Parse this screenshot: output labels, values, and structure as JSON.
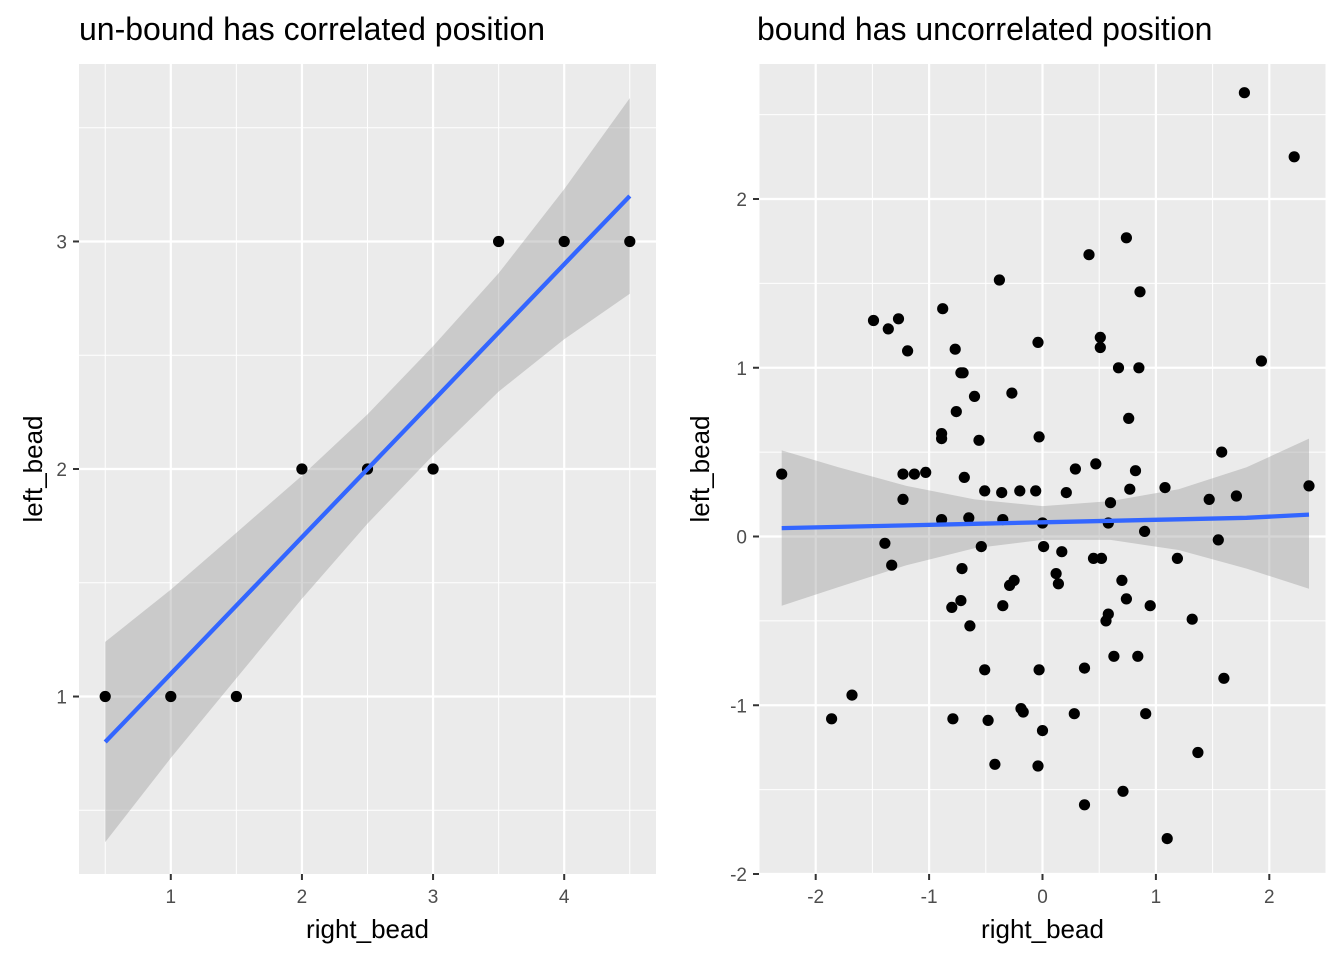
{
  "chart_data": [
    {
      "type": "scatter",
      "title": "un-bound has correlated position",
      "xlabel": "right_bead",
      "ylabel": "left_bead",
      "xlim": [
        0.3,
        4.7
      ],
      "ylim": [
        0.22,
        3.78
      ],
      "xticks": [
        1,
        2,
        3,
        4
      ],
      "xtick_labels": [
        "1",
        "2",
        "3",
        "4"
      ],
      "yticks": [
        1,
        2,
        3
      ],
      "ytick_labels": [
        "1",
        "2",
        "3"
      ],
      "grid": true,
      "panel_background": "#ebebeb",
      "x": [
        0.5,
        1,
        1.5,
        2,
        2.5,
        3,
        3.5,
        4,
        4.5
      ],
      "y": [
        1,
        1,
        1,
        2,
        2,
        2,
        3,
        3,
        3
      ],
      "fit": {
        "method": "linear regression with confidence band",
        "color": "#3366ff",
        "band_color": "#999999",
        "x": [
          0.5,
          1,
          1.5,
          2,
          2.5,
          3,
          3.5,
          4,
          4.5
        ],
        "y": [
          0.8,
          1.1,
          1.4,
          1.7,
          2.0,
          2.3,
          2.6,
          2.9,
          3.2
        ],
        "lower": [
          0.36,
          0.73,
          1.08,
          1.43,
          1.76,
          2.06,
          2.34,
          2.57,
          2.77
        ],
        "upper": [
          1.24,
          1.47,
          1.72,
          1.97,
          2.24,
          2.54,
          2.86,
          3.23,
          3.63
        ]
      }
    },
    {
      "type": "scatter",
      "title": "bound has uncorrelated position",
      "xlabel": "right_bead",
      "ylabel": "left_bead",
      "xlim": [
        -2.5,
        2.5
      ],
      "ylim": [
        -2.0,
        2.8
      ],
      "xticks": [
        -2,
        -1,
        0,
        1,
        2
      ],
      "xtick_labels": [
        "-2",
        "-1",
        "0",
        "1",
        "2"
      ],
      "yticks": [
        -2,
        -1,
        0,
        1,
        2
      ],
      "ytick_labels": [
        "-2",
        "-1",
        "0",
        "1",
        "2"
      ],
      "grid": true,
      "panel_background": "#ebebeb",
      "x": [
        1.78,
        2.22,
        0.74,
        0.41,
        -0.38,
        0.86,
        -0.88,
        -1.27,
        -1.36,
        -1.49,
        -0.77,
        -1.19,
        -0.04,
        0.51,
        0.51,
        1.93,
        -0.72,
        -0.7,
        0.67,
        0.85,
        -0.6,
        -0.27,
        -0.76,
        0.76,
        -0.89,
        -0.03,
        -0.89,
        -0.56,
        1.58,
        0.47,
        -1.13,
        -1.03,
        0.29,
        -0.69,
        -1.23,
        0.82,
        -0.51,
        0.77,
        1.08,
        -0.2,
        -0.06,
        -0.36,
        0.21,
        1.71,
        1.47,
        -1.23,
        0.6,
        -0.35,
        -0.89,
        -0.65,
        0.0,
        0.58,
        0.9,
        -1.39,
        -0.54,
        1.55,
        0.01,
        0.17,
        0.45,
        0.52,
        1.19,
        -1.33,
        -0.71,
        0.12,
        -0.25,
        0.7,
        -0.29,
        0.14,
        -0.8,
        0.74,
        -0.72,
        0.95,
        -0.35,
        0.58,
        1.32,
        0.56,
        -0.64,
        0.63,
        0.84,
        -0.51,
        -0.03,
        0.37,
        1.6,
        -1.68,
        -0.19,
        -0.17,
        0.28,
        0.91,
        -1.86,
        -0.79,
        -0.48,
        0.0,
        1.37,
        -0.42,
        -0.04,
        0.71,
        0.37,
        1.1,
        -2.3,
        2.35
      ],
      "y": [
        2.63,
        2.25,
        1.77,
        1.67,
        1.52,
        1.45,
        1.35,
        1.29,
        1.23,
        1.28,
        1.11,
        1.1,
        1.15,
        1.18,
        1.12,
        1.04,
        0.97,
        0.97,
        1.0,
        1.0,
        0.83,
        0.85,
        0.74,
        0.7,
        0.61,
        0.59,
        0.58,
        0.57,
        0.5,
        0.43,
        0.37,
        0.38,
        0.4,
        0.35,
        0.37,
        0.39,
        0.27,
        0.28,
        0.29,
        0.27,
        0.27,
        0.26,
        0.26,
        0.24,
        0.22,
        0.22,
        0.2,
        0.1,
        0.1,
        0.11,
        0.08,
        0.08,
        0.03,
        -0.04,
        -0.06,
        -0.02,
        -0.06,
        -0.09,
        -0.13,
        -0.13,
        -0.13,
        -0.17,
        -0.19,
        -0.22,
        -0.26,
        -0.26,
        -0.29,
        -0.28,
        -0.42,
        -0.37,
        -0.38,
        -0.41,
        -0.41,
        -0.46,
        -0.49,
        -0.5,
        -0.53,
        -0.71,
        -0.71,
        -0.79,
        -0.79,
        -0.78,
        -0.84,
        -0.94,
        -1.02,
        -1.04,
        -1.05,
        -1.05,
        -1.08,
        -1.08,
        -1.09,
        -1.15,
        -1.28,
        -1.35,
        -1.36,
        -1.51,
        -1.59,
        -1.79,
        0.37,
        0.3
      ],
      "fit": {
        "method": "linear regression with confidence band",
        "color": "#3366ff",
        "band_color": "#999999",
        "x": [
          -2.3,
          -1.8,
          -1.2,
          -0.6,
          0,
          0.6,
          1.2,
          1.8,
          2.35
        ],
        "y": [
          0.05,
          0.057,
          0.066,
          0.075,
          0.084,
          0.093,
          0.102,
          0.111,
          0.13
        ],
        "lower": [
          -0.41,
          -0.3,
          -0.17,
          -0.07,
          -0.02,
          -0.02,
          -0.08,
          -0.19,
          -0.31
        ],
        "upper": [
          0.51,
          0.41,
          0.3,
          0.22,
          0.18,
          0.21,
          0.28,
          0.41,
          0.58
        ]
      }
    }
  ]
}
